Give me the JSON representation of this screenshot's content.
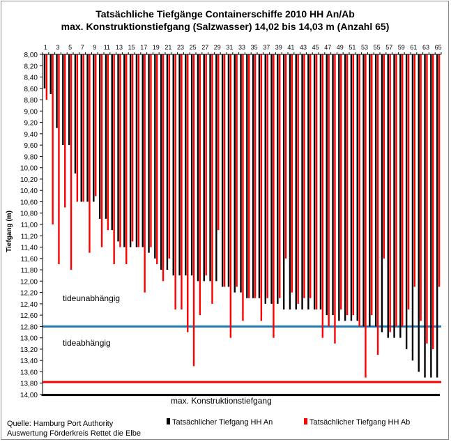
{
  "chart_data": {
    "type": "bar",
    "title": "Tatsächliche Tiefgänge Containerschiffe 2010 HH An/Ab",
    "subtitle": "max. Konstruktionstiefgang (Salzwasser) 14,02 bis 14,03 m (Anzahl 65)",
    "ylabel": "Tiefgang (m)",
    "xlabel": "",
    "y_axis_reversed": true,
    "ylim": [
      8.0,
      14.0
    ],
    "y_tick_step": 0.2,
    "categories": [
      1,
      2,
      3,
      4,
      5,
      6,
      7,
      8,
      9,
      10,
      11,
      12,
      13,
      14,
      15,
      16,
      17,
      18,
      19,
      20,
      21,
      22,
      23,
      24,
      25,
      26,
      27,
      28,
      29,
      30,
      31,
      32,
      33,
      34,
      35,
      36,
      37,
      38,
      39,
      40,
      41,
      42,
      43,
      44,
      45,
      46,
      47,
      48,
      49,
      50,
      51,
      52,
      53,
      54,
      55,
      56,
      57,
      58,
      59,
      60,
      61,
      62,
      63,
      64,
      65
    ],
    "x_tick_labels": [
      1,
      3,
      5,
      7,
      9,
      11,
      13,
      15,
      17,
      19,
      21,
      23,
      25,
      27,
      29,
      31,
      33,
      35,
      37,
      39,
      41,
      43,
      45,
      47,
      49,
      51,
      53,
      55,
      57,
      59,
      61,
      63,
      65
    ],
    "grid": false,
    "legend_position": "bottom-right",
    "series": [
      {
        "name": "Tatsächlicher Tiefgang HH An",
        "color": "#000000",
        "values": [
          8.6,
          8.7,
          9.3,
          9.6,
          9.6,
          10.1,
          10.6,
          10.6,
          10.6,
          10.9,
          10.9,
          11.1,
          11.3,
          11.4,
          11.4,
          11.4,
          11.4,
          11.5,
          11.6,
          11.8,
          11.8,
          11.9,
          11.9,
          11.9,
          11.9,
          12.0,
          12.0,
          12.0,
          12.0,
          12.1,
          12.1,
          12.2,
          12.2,
          12.3,
          12.3,
          12.3,
          12.4,
          12.4,
          12.4,
          12.5,
          12.5,
          12.5,
          12.5,
          12.5,
          12.5,
          12.5,
          12.6,
          12.6,
          12.7,
          12.7,
          12.7,
          12.7,
          12.8,
          12.8,
          12.8,
          12.9,
          13.0,
          13.0,
          13.0,
          13.2,
          13.4,
          13.6,
          13.7,
          13.7,
          13.7
        ]
      },
      {
        "name": "Tatsächlicher Tiefgang HH Ab",
        "color": "#ff0000",
        "values": [
          8.8,
          11.0,
          11.7,
          10.7,
          11.8,
          10.6,
          10.6,
          11.5,
          10.5,
          11.4,
          11.1,
          11.7,
          11.4,
          11.7,
          11.3,
          11.4,
          12.2,
          11.4,
          11.7,
          12.0,
          11.6,
          12.5,
          12.5,
          12.9,
          13.5,
          12.6,
          11.9,
          12.4,
          11.1,
          12.1,
          13.0,
          12.1,
          12.7,
          12.3,
          12.3,
          12.7,
          12.3,
          13.0,
          12.3,
          11.6,
          12.2,
          12.4,
          12.3,
          12.3,
          12.5,
          13.0,
          12.8,
          13.1,
          12.5,
          12.6,
          12.6,
          12.8,
          13.7,
          12.6,
          13.3,
          11.6,
          12.9,
          12.8,
          12.8,
          12.5,
          12.1,
          12.7,
          13.1,
          13.2,
          12.1
        ]
      }
    ],
    "reference_lines": [
      {
        "value": 12.8,
        "color": "#1f77b4",
        "label_above": "tideunabhängig",
        "label_below": "tideabhängig"
      },
      {
        "value": 13.78,
        "color": "#ff0000"
      },
      {
        "value": 14.0,
        "color": "#000000",
        "label": "max. Konstruktionstiefgang"
      }
    ],
    "source": [
      "Quelle: Hamburg Port Authority",
      "Auswertung Förderkreis Rettet die Elbe"
    ]
  }
}
